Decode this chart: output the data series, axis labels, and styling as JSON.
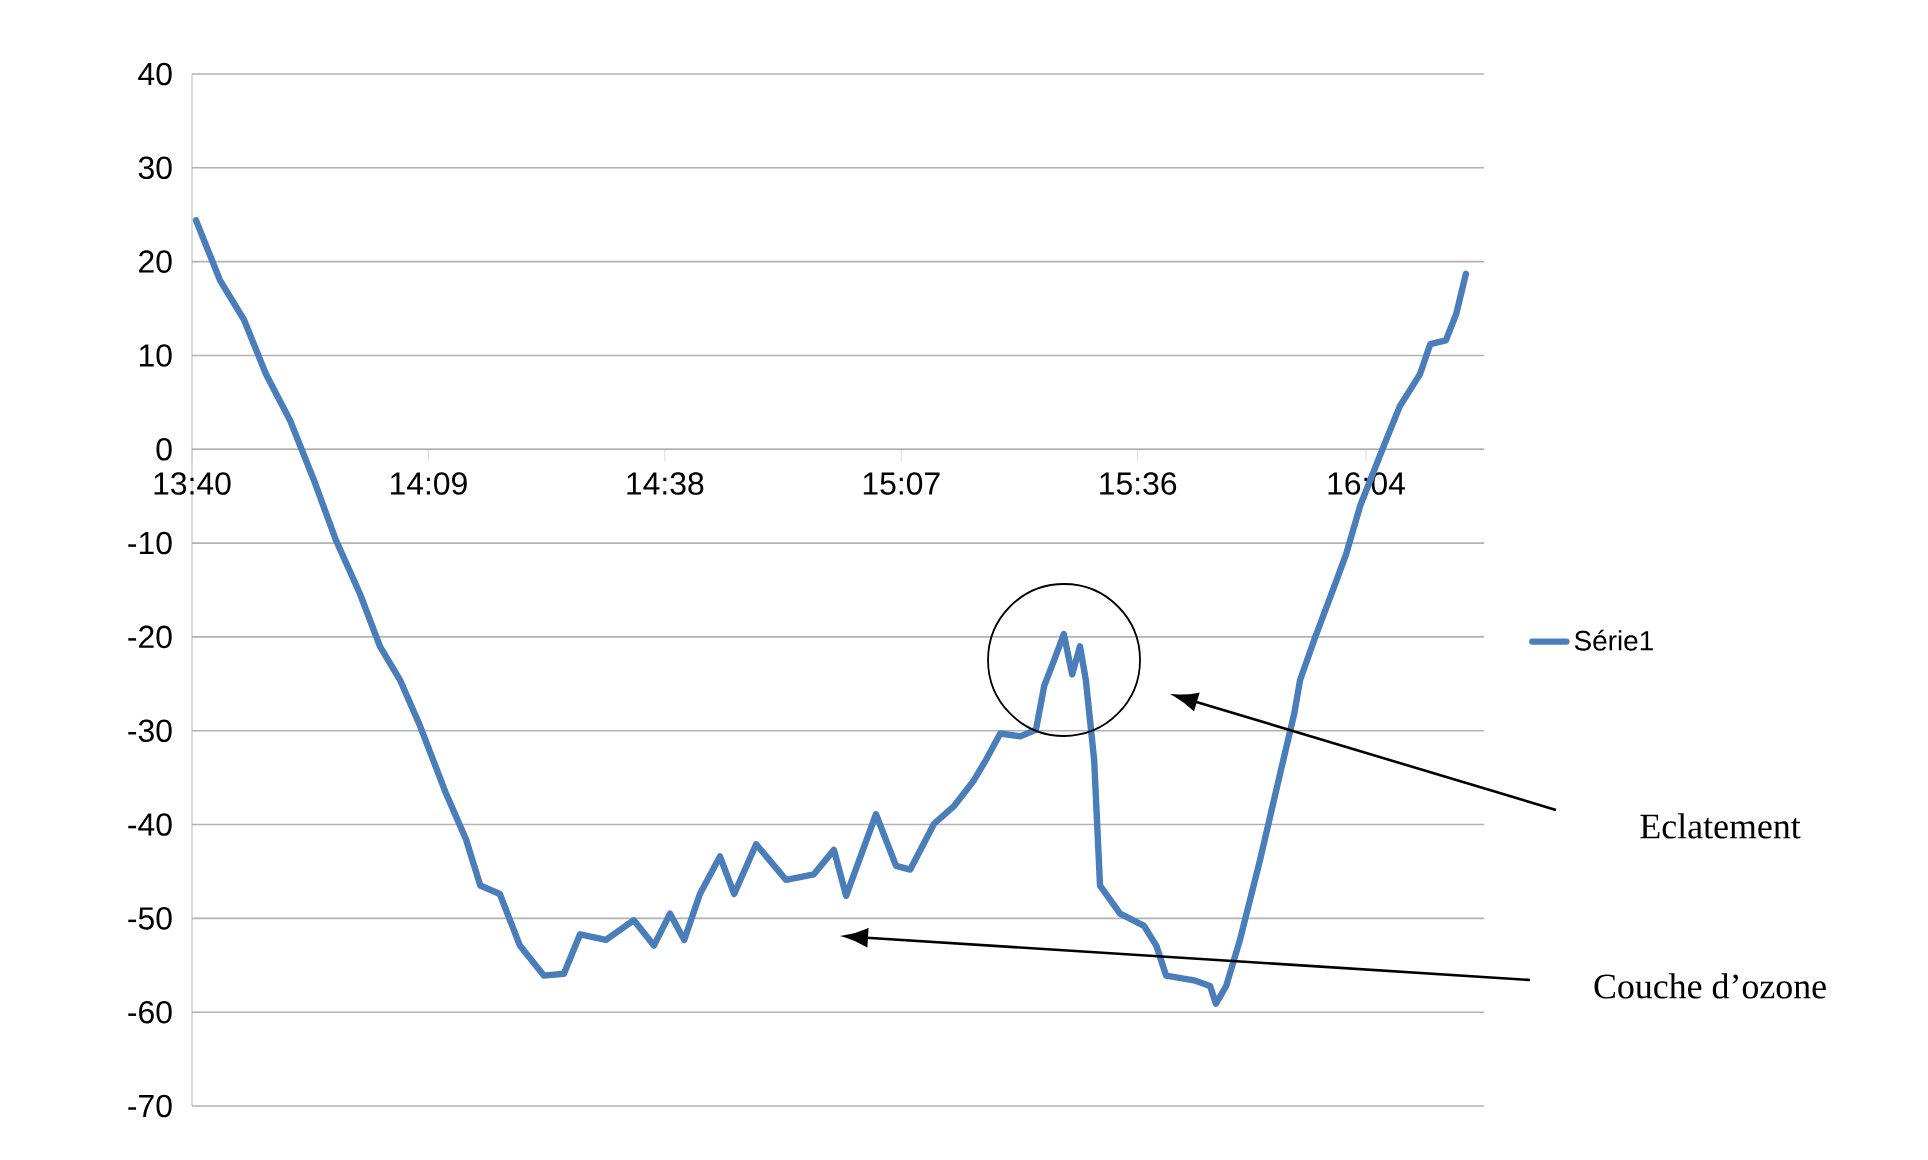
{
  "chart_data": {
    "type": "line",
    "xlim": [
      13.6667,
      16.308
    ],
    "xticks": [
      {
        "value": 13.6667,
        "label": "13:40"
      },
      {
        "value": 14.15,
        "label": "14:09"
      },
      {
        "value": 14.6333,
        "label": "14:38"
      },
      {
        "value": 15.1167,
        "label": "15:07"
      },
      {
        "value": 15.6,
        "label": "15:36"
      },
      {
        "value": 16.0667,
        "label": "16:04"
      }
    ],
    "ylim": [
      -70,
      40
    ],
    "yticks": [
      -70,
      -60,
      -50,
      -40,
      -30,
      -20,
      -10,
      0,
      10,
      20,
      30,
      40
    ],
    "grid": "y",
    "legend": "right",
    "series": [
      {
        "name": "Série1",
        "color": "#4a7ebb",
        "x": [
          13.675,
          13.724,
          13.773,
          13.818,
          13.867,
          13.916,
          13.961,
          14.01,
          14.051,
          14.092,
          14.133,
          14.186,
          14.227,
          14.256,
          14.296,
          14.337,
          14.386,
          14.427,
          14.46,
          14.513,
          14.57,
          14.611,
          14.644,
          14.673,
          14.705,
          14.746,
          14.775,
          14.82,
          14.881,
          14.938,
          14.979,
          15.004,
          15.065,
          15.106,
          15.135,
          15.184,
          15.225,
          15.265,
          15.29,
          15.319,
          15.36,
          15.392,
          15.409,
          15.429,
          15.449,
          15.466,
          15.482,
          15.494,
          15.511,
          15.523,
          15.564,
          15.613,
          15.638,
          15.658,
          15.715,
          15.748,
          15.76,
          15.781,
          15.809,
          15.85,
          15.891,
          15.92,
          15.932,
          15.961,
          16.002,
          16.026,
          16.055,
          16.108,
          16.136,
          16.177,
          16.198,
          16.23,
          16.251,
          16.271
        ],
        "values": [
          24.4,
          18.0,
          13.8,
          8.0,
          3.1,
          -3.3,
          -9.7,
          -15.4,
          -21.0,
          -24.6,
          -29.5,
          -36.7,
          -41.6,
          -46.5,
          -47.4,
          -52.9,
          -56.1,
          -55.9,
          -51.7,
          -52.3,
          -50.2,
          -52.9,
          -49.5,
          -52.3,
          -47.4,
          -43.4,
          -47.4,
          -42.1,
          -45.9,
          -45.3,
          -42.7,
          -47.6,
          -38.9,
          -44.4,
          -44.8,
          -39.9,
          -38.0,
          -35.3,
          -33.1,
          -30.3,
          -30.6,
          -29.9,
          -25.2,
          -22.5,
          -19.7,
          -24.0,
          -21.0,
          -24.6,
          -33.1,
          -46.5,
          -49.5,
          -50.8,
          -52.9,
          -56.1,
          -56.6,
          -57.2,
          -59.1,
          -57.2,
          -52.3,
          -43.8,
          -34.6,
          -28.2,
          -24.6,
          -20.3,
          -14.6,
          -11.2,
          -6.0,
          1.0,
          4.6,
          8.0,
          11.2,
          11.6,
          14.4,
          18.7
        ]
      }
    ],
    "annotations": [
      "Eclatement",
      "Couche d’ozone"
    ]
  }
}
